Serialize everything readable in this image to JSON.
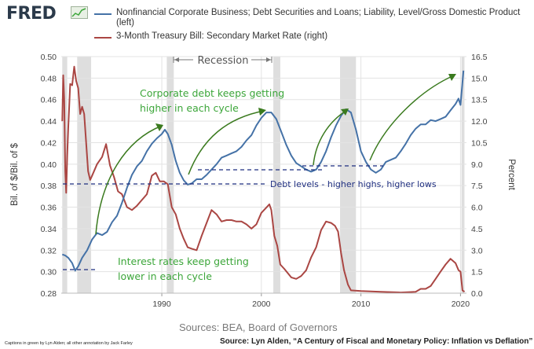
{
  "header": {
    "logo_text": "FRED",
    "logo_icon": "line-graph-icon",
    "legend": [
      {
        "label": "Nonfinancial Corporate Business; Debt Securities and Loans; Liability, Level/Gross Domestic Product (left)",
        "color": "#4572a7"
      },
      {
        "label": "3-Month Treasury Bill: Secondary Market Rate (right)",
        "color": "#aa4643"
      }
    ]
  },
  "annotations": {
    "recession_label": "Recession",
    "corporate_debt_note": [
      "Corporate debt keeps getting",
      "higher in each cycle"
    ],
    "debt_levels_note": "Debt levels - higher highs, higher lows",
    "interest_rates_note": [
      "Interest rates keep getting",
      "lower in each cycle"
    ]
  },
  "footer": {
    "source": "Sources: BEA, Board of Governors",
    "caption": "Captions in green by Lyn Alden; all other annotation by Jack Farley",
    "credit": "Source: Lyn Alden, “A Century of Fiscal and Monetary Policy: Inflation vs Deflation”"
  },
  "colors": {
    "debt_line": "#4572a7",
    "rate_line": "#aa4643",
    "recession_shade": "#dedede",
    "annotation_green": "#3ca63a",
    "dashed_blue": "#1f2f80",
    "grid": "#e3e3e3"
  },
  "chart_data": {
    "type": "line",
    "title": "",
    "xlabel": "",
    "ylabel": "Bil. of $/Bil. of $",
    "ylabel_right": "Percent",
    "xlim": [
      1979.9,
      2020.6
    ],
    "ylim": [
      0.28,
      0.5
    ],
    "ylim_right": [
      0.0,
      16.5
    ],
    "x_ticks": [
      1990,
      2000,
      2010,
      2020
    ],
    "y_ticks": [
      0.28,
      0.3,
      0.32,
      0.34,
      0.36,
      0.38,
      0.4,
      0.42,
      0.44,
      0.46,
      0.48,
      0.5
    ],
    "y_tick_labels": [
      "0.28",
      "0.30",
      "0.32",
      "0.34",
      "0.36",
      "0.38",
      "0.40",
      "0.42",
      "0.44",
      "0.46",
      "0.48",
      "0.50"
    ],
    "y_ticks_right": [
      0.0,
      1.5,
      3.0,
      4.5,
      6.0,
      7.5,
      9.0,
      10.5,
      12.0,
      13.5,
      15.0,
      16.5
    ],
    "y_tick_labels_right": [
      "0.0",
      "1.5",
      "3.0",
      "4.5",
      "6.0",
      "7.5",
      "9.0",
      "10.5",
      "12.0",
      "13.5",
      "15.0",
      "16.5"
    ],
    "grid": true,
    "legend_position": "top",
    "recessions": [
      [
        1980.0,
        1980.5
      ],
      [
        1981.5,
        1982.9
      ],
      [
        1990.5,
        1991.2
      ],
      [
        2001.2,
        2001.9
      ],
      [
        2007.9,
        2009.5
      ],
      [
        2020.1,
        2020.4
      ]
    ],
    "series": [
      {
        "name": "Nonfinancial Corporate Business; Debt Securities and Loans; Liability, Level/Gross Domestic Product (left)",
        "axis": "left",
        "x": [
          1980.0,
          1980.3,
          1980.6,
          1981.0,
          1981.3,
          1981.6,
          1982.0,
          1982.5,
          1983.0,
          1983.5,
          1984.0,
          1984.5,
          1985.0,
          1985.5,
          1986.0,
          1986.5,
          1987.0,
          1987.5,
          1988.0,
          1988.5,
          1989.0,
          1989.5,
          1990.0,
          1990.3,
          1990.6,
          1991.0,
          1991.4,
          1991.8,
          1992.2,
          1992.6,
          1993.0,
          1993.5,
          1994.0,
          1994.5,
          1995.0,
          1995.5,
          1996.0,
          1996.5,
          1997.0,
          1997.5,
          1998.0,
          1998.5,
          1999.0,
          1999.5,
          2000.0,
          2000.5,
          2001.0,
          2001.5,
          2002.0,
          2002.5,
          2003.0,
          2003.5,
          2004.0,
          2004.5,
          2005.0,
          2005.5,
          2006.0,
          2006.5,
          2007.0,
          2007.5,
          2008.0,
          2008.5,
          2009.0,
          2009.5,
          2010.0,
          2010.5,
          2011.0,
          2011.5,
          2012.0,
          2012.5,
          2013.0,
          2013.5,
          2014.0,
          2014.5,
          2015.0,
          2015.5,
          2016.0,
          2016.5,
          2017.0,
          2017.5,
          2018.0,
          2018.5,
          2019.0,
          2019.5,
          2019.8,
          2020.0,
          2020.3
        ],
        "values": [
          0.316,
          0.315,
          0.313,
          0.308,
          0.301,
          0.305,
          0.313,
          0.32,
          0.33,
          0.336,
          0.334,
          0.337,
          0.346,
          0.352,
          0.364,
          0.378,
          0.39,
          0.398,
          0.403,
          0.412,
          0.419,
          0.424,
          0.428,
          0.432,
          0.428,
          0.418,
          0.403,
          0.392,
          0.385,
          0.381,
          0.382,
          0.386,
          0.386,
          0.39,
          0.395,
          0.4,
          0.406,
          0.408,
          0.41,
          0.412,
          0.416,
          0.422,
          0.427,
          0.436,
          0.443,
          0.448,
          0.448,
          0.442,
          0.43,
          0.418,
          0.408,
          0.401,
          0.398,
          0.395,
          0.393,
          0.395,
          0.402,
          0.412,
          0.425,
          0.436,
          0.445,
          0.451,
          0.448,
          0.432,
          0.412,
          0.402,
          0.395,
          0.392,
          0.395,
          0.402,
          0.404,
          0.406,
          0.412,
          0.419,
          0.427,
          0.433,
          0.437,
          0.437,
          0.441,
          0.44,
          0.442,
          0.444,
          0.45,
          0.456,
          0.461,
          0.455,
          0.487
        ]
      },
      {
        "name": "3-Month Treasury Bill: Secondary Market Rate (right)",
        "axis": "right",
        "x": [
          1980.0,
          1980.1,
          1980.2,
          1980.3,
          1980.4,
          1980.5,
          1980.6,
          1980.8,
          1981.0,
          1981.2,
          1981.4,
          1981.6,
          1981.8,
          1982.0,
          1982.2,
          1982.4,
          1982.6,
          1982.8,
          1983.0,
          1983.5,
          1984.0,
          1984.4,
          1984.8,
          1985.2,
          1985.6,
          1986.0,
          1986.5,
          1987.0,
          1987.5,
          1988.0,
          1988.5,
          1989.0,
          1989.4,
          1989.8,
          1990.2,
          1990.6,
          1991.0,
          1991.4,
          1991.8,
          1992.2,
          1992.6,
          1993.0,
          1993.5,
          1994.0,
          1994.5,
          1995.0,
          1995.5,
          1996.0,
          1996.5,
          1997.0,
          1997.5,
          1998.0,
          1998.5,
          1999.0,
          1999.5,
          2000.0,
          2000.4,
          2000.8,
          2001.0,
          2001.3,
          2001.6,
          2001.9,
          2002.3,
          2003.0,
          2003.5,
          2004.0,
          2004.5,
          2005.0,
          2005.5,
          2006.0,
          2006.5,
          2007.0,
          2007.4,
          2007.7,
          2008.0,
          2008.3,
          2008.7,
          2009.0,
          2010.0,
          2012.0,
          2014.0,
          2015.5,
          2016.0,
          2016.5,
          2017.0,
          2017.5,
          2018.0,
          2018.5,
          2019.0,
          2019.5,
          2019.8,
          2020.0,
          2020.2,
          2020.4
        ],
        "values": [
          12.0,
          15.2,
          13.5,
          8.5,
          7.0,
          9.6,
          11.5,
          14.6,
          14.5,
          15.8,
          14.8,
          14.3,
          12.5,
          13.0,
          12.5,
          10.5,
          8.5,
          7.9,
          8.2,
          9.0,
          9.5,
          10.4,
          8.9,
          8.1,
          7.1,
          6.9,
          6.0,
          5.8,
          6.1,
          6.5,
          6.9,
          8.2,
          8.4,
          7.8,
          7.8,
          7.6,
          6.0,
          5.5,
          4.5,
          3.8,
          3.2,
          3.1,
          3.0,
          4.0,
          4.9,
          5.8,
          5.5,
          5.0,
          5.1,
          5.1,
          5.0,
          5.0,
          4.8,
          4.5,
          4.8,
          5.6,
          5.9,
          6.2,
          5.8,
          4.0,
          3.3,
          2.0,
          1.7,
          1.1,
          1.0,
          1.2,
          1.6,
          2.5,
          3.2,
          4.4,
          5.0,
          4.9,
          4.7,
          4.3,
          2.8,
          1.6,
          0.6,
          0.2,
          0.15,
          0.1,
          0.05,
          0.1,
          0.3,
          0.3,
          0.5,
          1.0,
          1.5,
          2.0,
          2.4,
          2.1,
          1.6,
          1.5,
          0.2,
          0.1
        ]
      }
    ]
  }
}
